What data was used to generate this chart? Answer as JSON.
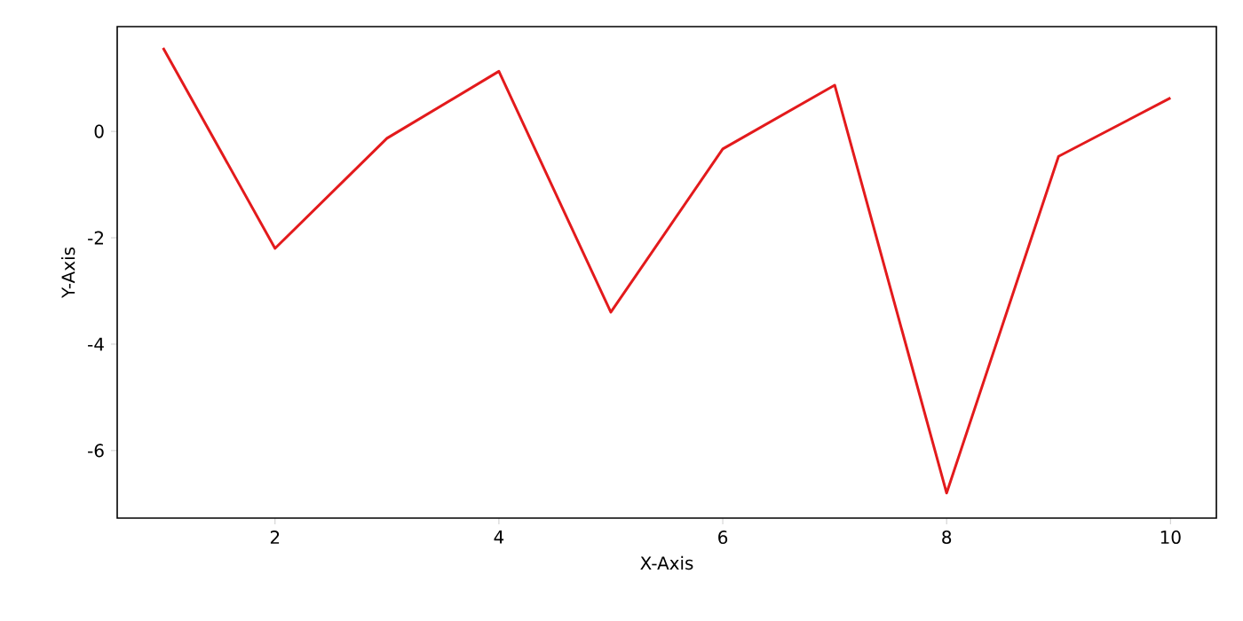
{
  "chart_data": {
    "type": "line",
    "xlabel": "X-Axis",
    "ylabel": "Y-Axis",
    "x": [
      1,
      2,
      3,
      4,
      5,
      6,
      7,
      8,
      9,
      10
    ],
    "series": [
      {
        "color": "#e31a1c",
        "values": [
          1.57,
          -2.2,
          -0.13,
          1.13,
          -3.4,
          -0.33,
          0.87,
          -6.8,
          -0.47,
          0.63
        ]
      }
    ],
    "xlim": [
      0.59,
      10.41
    ],
    "ylim": [
      -7.27,
      1.97
    ],
    "xticks": [
      2,
      4,
      6,
      8,
      10
    ],
    "yticks": [
      -6,
      -4,
      -2,
      0
    ],
    "grid": false
  }
}
